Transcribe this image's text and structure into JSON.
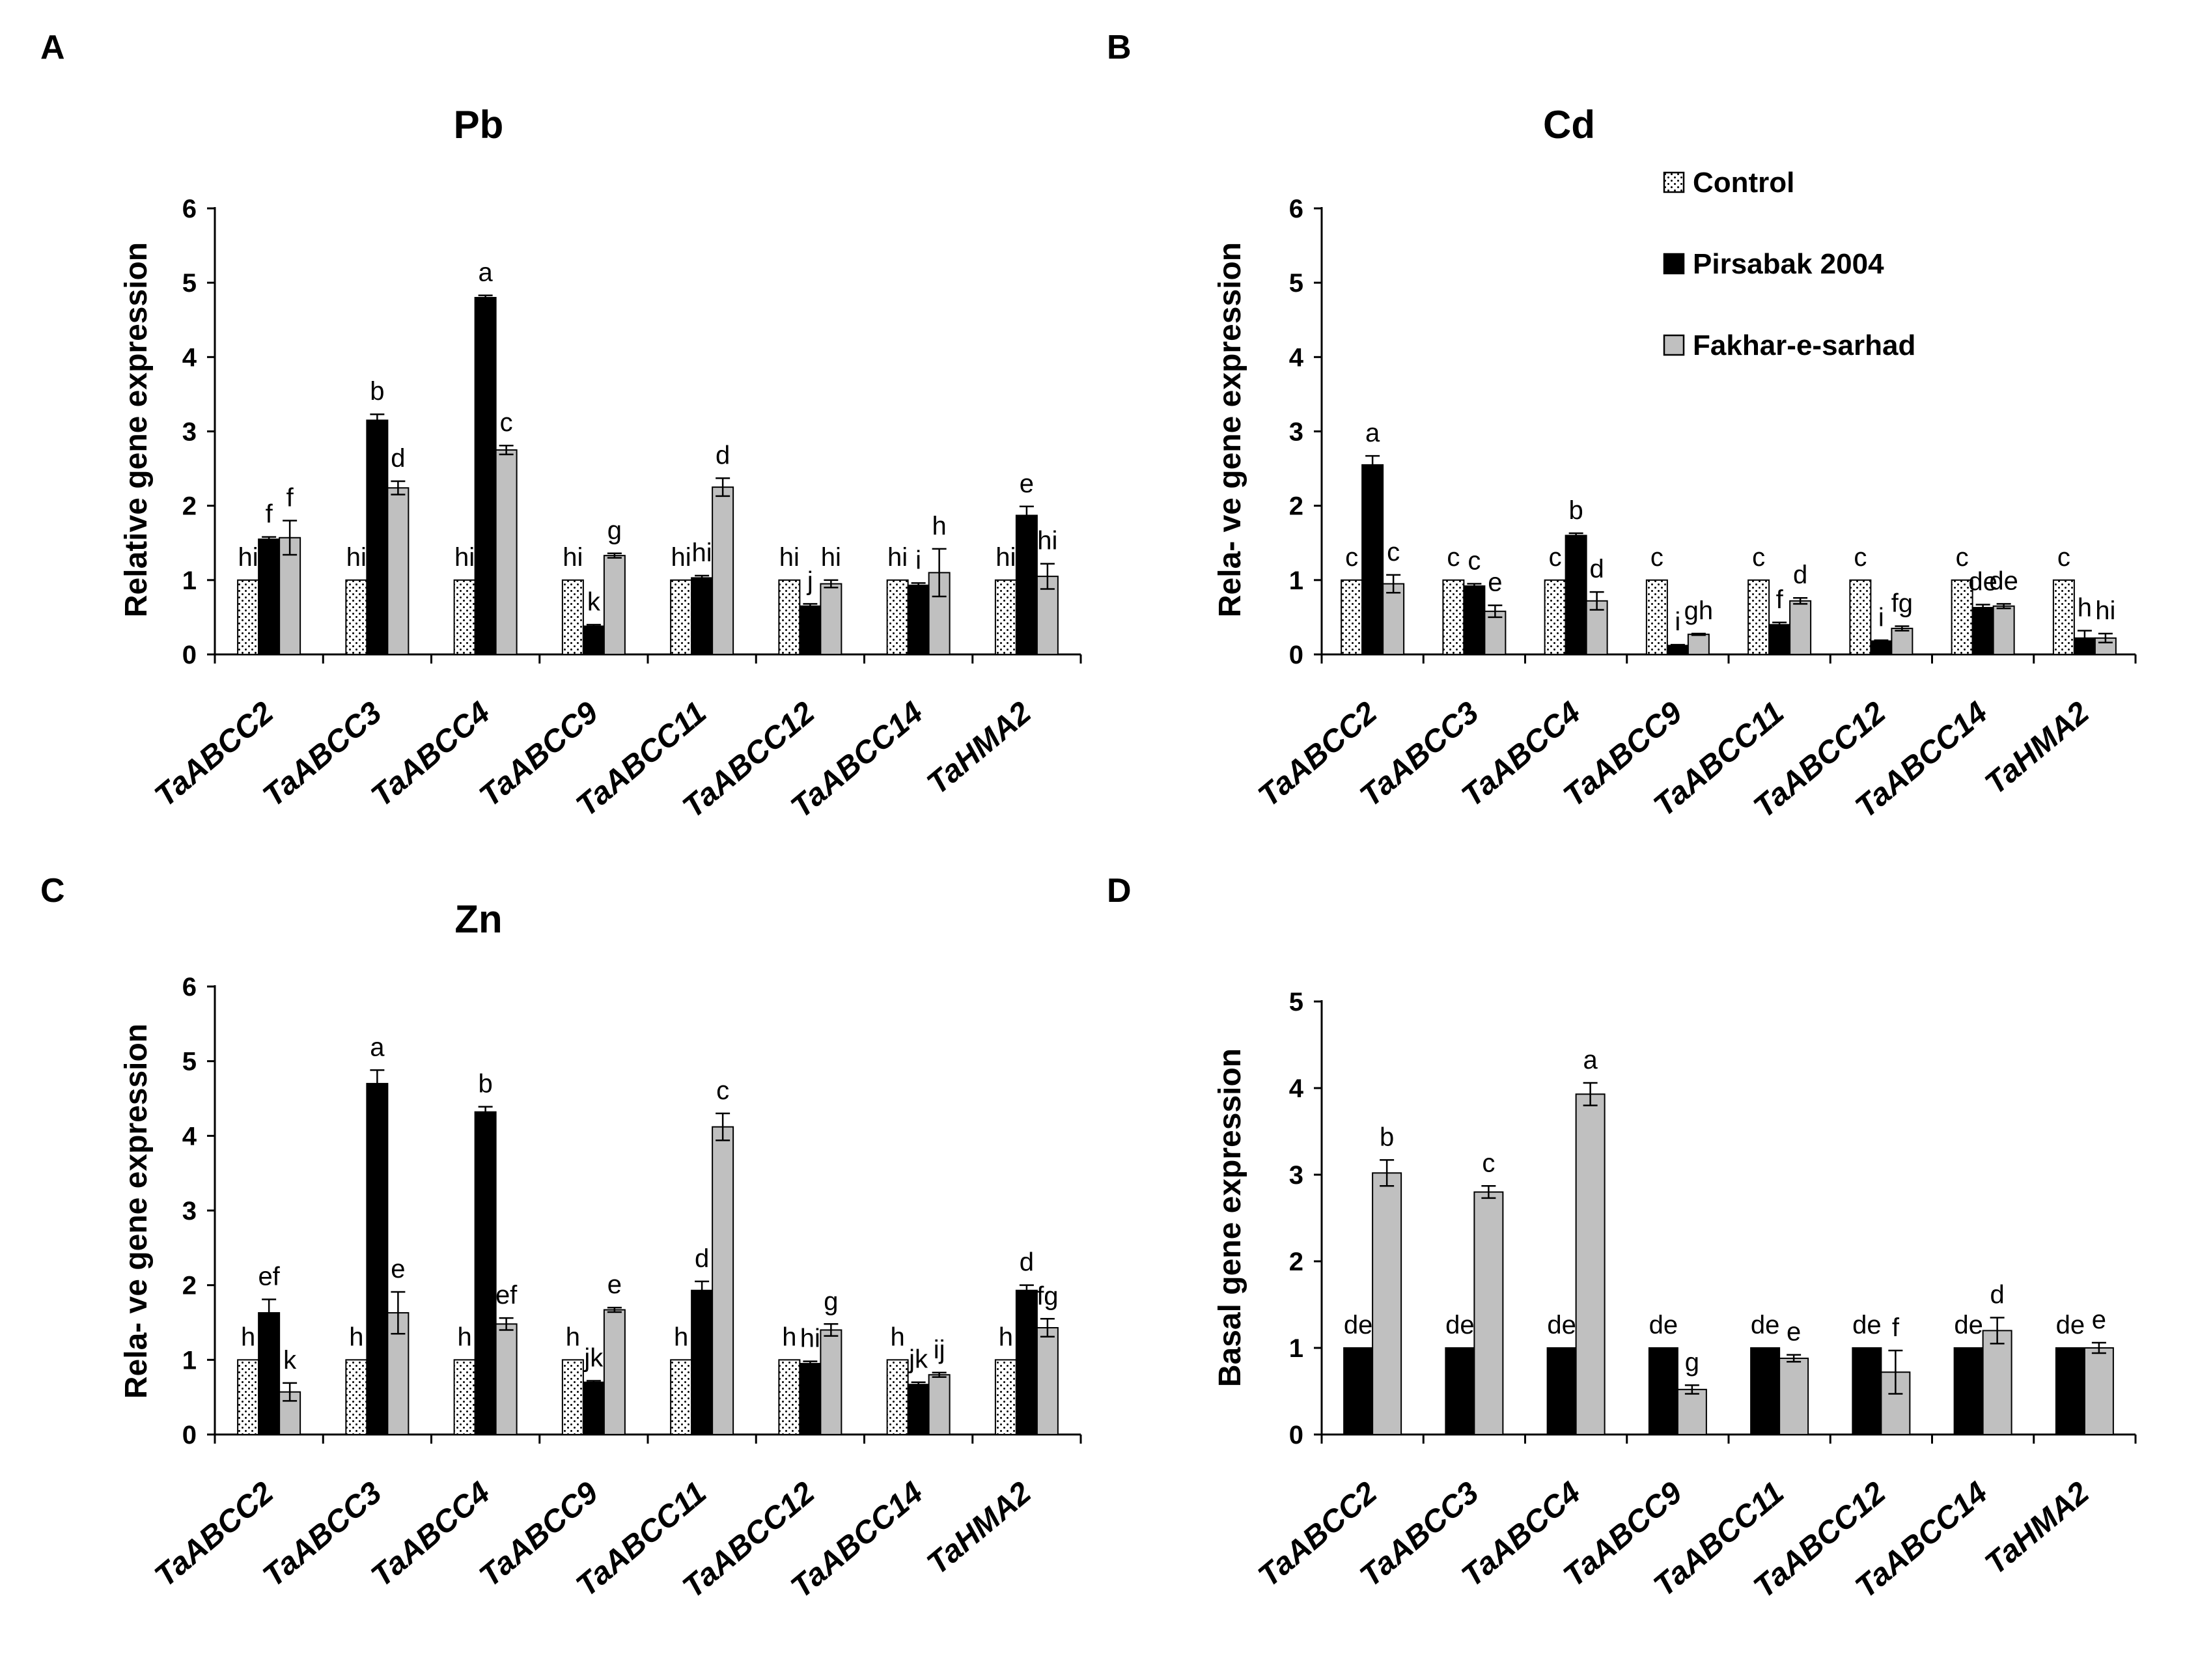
{
  "colors": {
    "control_fill": "#ffffff",
    "pirsabak_fill": "#000000",
    "fakhar_fill": "#c0c0c0",
    "axis": "#000000"
  },
  "legend": {
    "items": [
      {
        "label": "Control",
        "pattern": "dots"
      },
      {
        "label": "Pirsabak 2004",
        "pattern": "solid-black"
      },
      {
        "label": "Fakhar-e-sarhad",
        "pattern": "solid-gray"
      }
    ]
  },
  "chart_data": [
    {
      "panel": "A",
      "type": "bar",
      "title": "Pb",
      "ylabel": "Relative gene expression",
      "xlabel": "",
      "ylim": [
        0,
        6
      ],
      "yticks": [
        0,
        1,
        2,
        3,
        4,
        5,
        6
      ],
      "categories": [
        "TaABCC2",
        "TaABCC3",
        "TaABCC4",
        "TaABCC9",
        "TaABCC11",
        "TaABCC12",
        "TaABCC14",
        "TaHMA2"
      ],
      "series": [
        {
          "name": "Control",
          "values": [
            1,
            1,
            1,
            1,
            1,
            1,
            1,
            1
          ],
          "errors": [
            0,
            0,
            0,
            0,
            0,
            0,
            0,
            0
          ],
          "letters": [
            "hi",
            "hi",
            "hi",
            "hi",
            "hi",
            "hi",
            "hi",
            "hi"
          ]
        },
        {
          "name": "Pirsabak 2004",
          "values": [
            1.55,
            3.15,
            4.8,
            0.38,
            1.03,
            0.65,
            0.93,
            1.87
          ],
          "errors": [
            0.03,
            0.08,
            0.03,
            0.02,
            0.03,
            0.03,
            0.03,
            0.12
          ],
          "letters": [
            "f",
            "b",
            "a",
            "k",
            "hi",
            "j",
            "i",
            "e"
          ]
        },
        {
          "name": "Fakhar-e-sarhad",
          "values": [
            1.57,
            2.24,
            2.75,
            1.33,
            2.25,
            0.95,
            1.1,
            1.05
          ],
          "errors": [
            0.23,
            0.09,
            0.06,
            0.03,
            0.12,
            0.05,
            0.32,
            0.17
          ],
          "letters": [
            "f",
            "d",
            "c",
            "g",
            "d",
            "hi",
            "h",
            "hi"
          ]
        }
      ]
    },
    {
      "panel": "B",
      "type": "bar",
      "title": "Cd",
      "ylabel": "Rela- ve gene expression",
      "xlabel": "",
      "ylim": [
        0,
        6
      ],
      "yticks": [
        0,
        1,
        2,
        3,
        4,
        5,
        6
      ],
      "categories": [
        "TaABCC2",
        "TaABCC3",
        "TaABCC4",
        "TaABCC9",
        "TaABCC11",
        "TaABCC12",
        "TaABCC14",
        "TaHMA2"
      ],
      "series": [
        {
          "name": "Control",
          "values": [
            1,
            1,
            1,
            1,
            1,
            1,
            1,
            1
          ],
          "errors": [
            0,
            0,
            0,
            0,
            0,
            0,
            0,
            0
          ],
          "letters": [
            "c",
            "c",
            "c",
            "c",
            "c",
            "c",
            "c",
            "c"
          ]
        },
        {
          "name": "Pirsabak 2004",
          "values": [
            2.55,
            0.92,
            1.6,
            0.12,
            0.4,
            0.18,
            0.63,
            0.22
          ],
          "errors": [
            0.12,
            0.03,
            0.03,
            0.01,
            0.03,
            0.01,
            0.04,
            0.1
          ],
          "letters": [
            "a",
            "c",
            "b",
            "i",
            "f",
            "i",
            "de",
            "h"
          ]
        },
        {
          "name": "Fakhar-e-sarhad",
          "values": [
            0.95,
            0.58,
            0.72,
            0.27,
            0.72,
            0.35,
            0.65,
            0.22
          ],
          "errors": [
            0.12,
            0.08,
            0.12,
            0.01,
            0.04,
            0.03,
            0.03,
            0.06
          ],
          "letters": [
            "c",
            "e",
            "d",
            "gh",
            "d",
            "fg",
            "de",
            "hi"
          ]
        }
      ]
    },
    {
      "panel": "C",
      "type": "bar",
      "title": "Zn",
      "ylabel": "Rela- ve gene expression",
      "xlabel": "",
      "ylim": [
        0,
        6
      ],
      "yticks": [
        0,
        1,
        2,
        3,
        4,
        5,
        6
      ],
      "categories": [
        "TaABCC2",
        "TaABCC3",
        "TaABCC4",
        "TaABCC9",
        "TaABCC11",
        "TaABCC12",
        "TaABCC14",
        "TaHMA2"
      ],
      "series": [
        {
          "name": "Control",
          "values": [
            1,
            1,
            1,
            1,
            1,
            1,
            1,
            1
          ],
          "errors": [
            0,
            0,
            0,
            0,
            0,
            0,
            0,
            0
          ],
          "letters": [
            "h",
            "h",
            "h",
            "h",
            "h",
            "h",
            "h",
            "h"
          ]
        },
        {
          "name": "Pirsabak 2004",
          "values": [
            1.63,
            4.7,
            4.32,
            0.7,
            1.93,
            0.95,
            0.67,
            1.93
          ],
          "errors": [
            0.18,
            0.18,
            0.07,
            0.02,
            0.12,
            0.03,
            0.03,
            0.07
          ],
          "letters": [
            "ef",
            "a",
            "b",
            "jk",
            "d",
            "hi",
            "jk",
            "d"
          ]
        },
        {
          "name": "Fakhar-e-sarhad",
          "values": [
            0.57,
            1.63,
            1.48,
            1.67,
            4.12,
            1.4,
            0.8,
            1.43
          ],
          "errors": [
            0.12,
            0.28,
            0.08,
            0.03,
            0.18,
            0.08,
            0.03,
            0.12
          ],
          "letters": [
            "k",
            "e",
            "ef",
            "e",
            "c",
            "g",
            "ij",
            "fg"
          ]
        }
      ]
    },
    {
      "panel": "D",
      "type": "bar",
      "title": "",
      "ylabel": "Basal gene expression",
      "xlabel": "",
      "ylim": [
        0,
        5
      ],
      "yticks": [
        0,
        1,
        2,
        3,
        4,
        5
      ],
      "categories": [
        "TaABCC2",
        "TaABCC3",
        "TaABCC4",
        "TaABCC9",
        "TaABCC11",
        "TaABCC12",
        "TaABCC14",
        "TaHMA2"
      ],
      "series": [
        {
          "name": "Pirsabak 2004",
          "values": [
            1,
            1,
            1,
            1,
            1,
            1,
            1,
            1
          ],
          "errors": [
            0,
            0,
            0,
            0,
            0,
            0,
            0,
            0
          ],
          "letters": [
            "de",
            "de",
            "de",
            "de",
            "de",
            "de",
            "de",
            "de"
          ]
        },
        {
          "name": "Fakhar-e-sarhad",
          "values": [
            3.02,
            2.8,
            3.93,
            0.52,
            0.88,
            0.72,
            1.2,
            1.0
          ],
          "errors": [
            0.15,
            0.07,
            0.13,
            0.05,
            0.04,
            0.25,
            0.15,
            0.06
          ],
          "letters": [
            "b",
            "c",
            "a",
            "g",
            "e",
            "f",
            "d",
            "e"
          ]
        }
      ]
    }
  ]
}
